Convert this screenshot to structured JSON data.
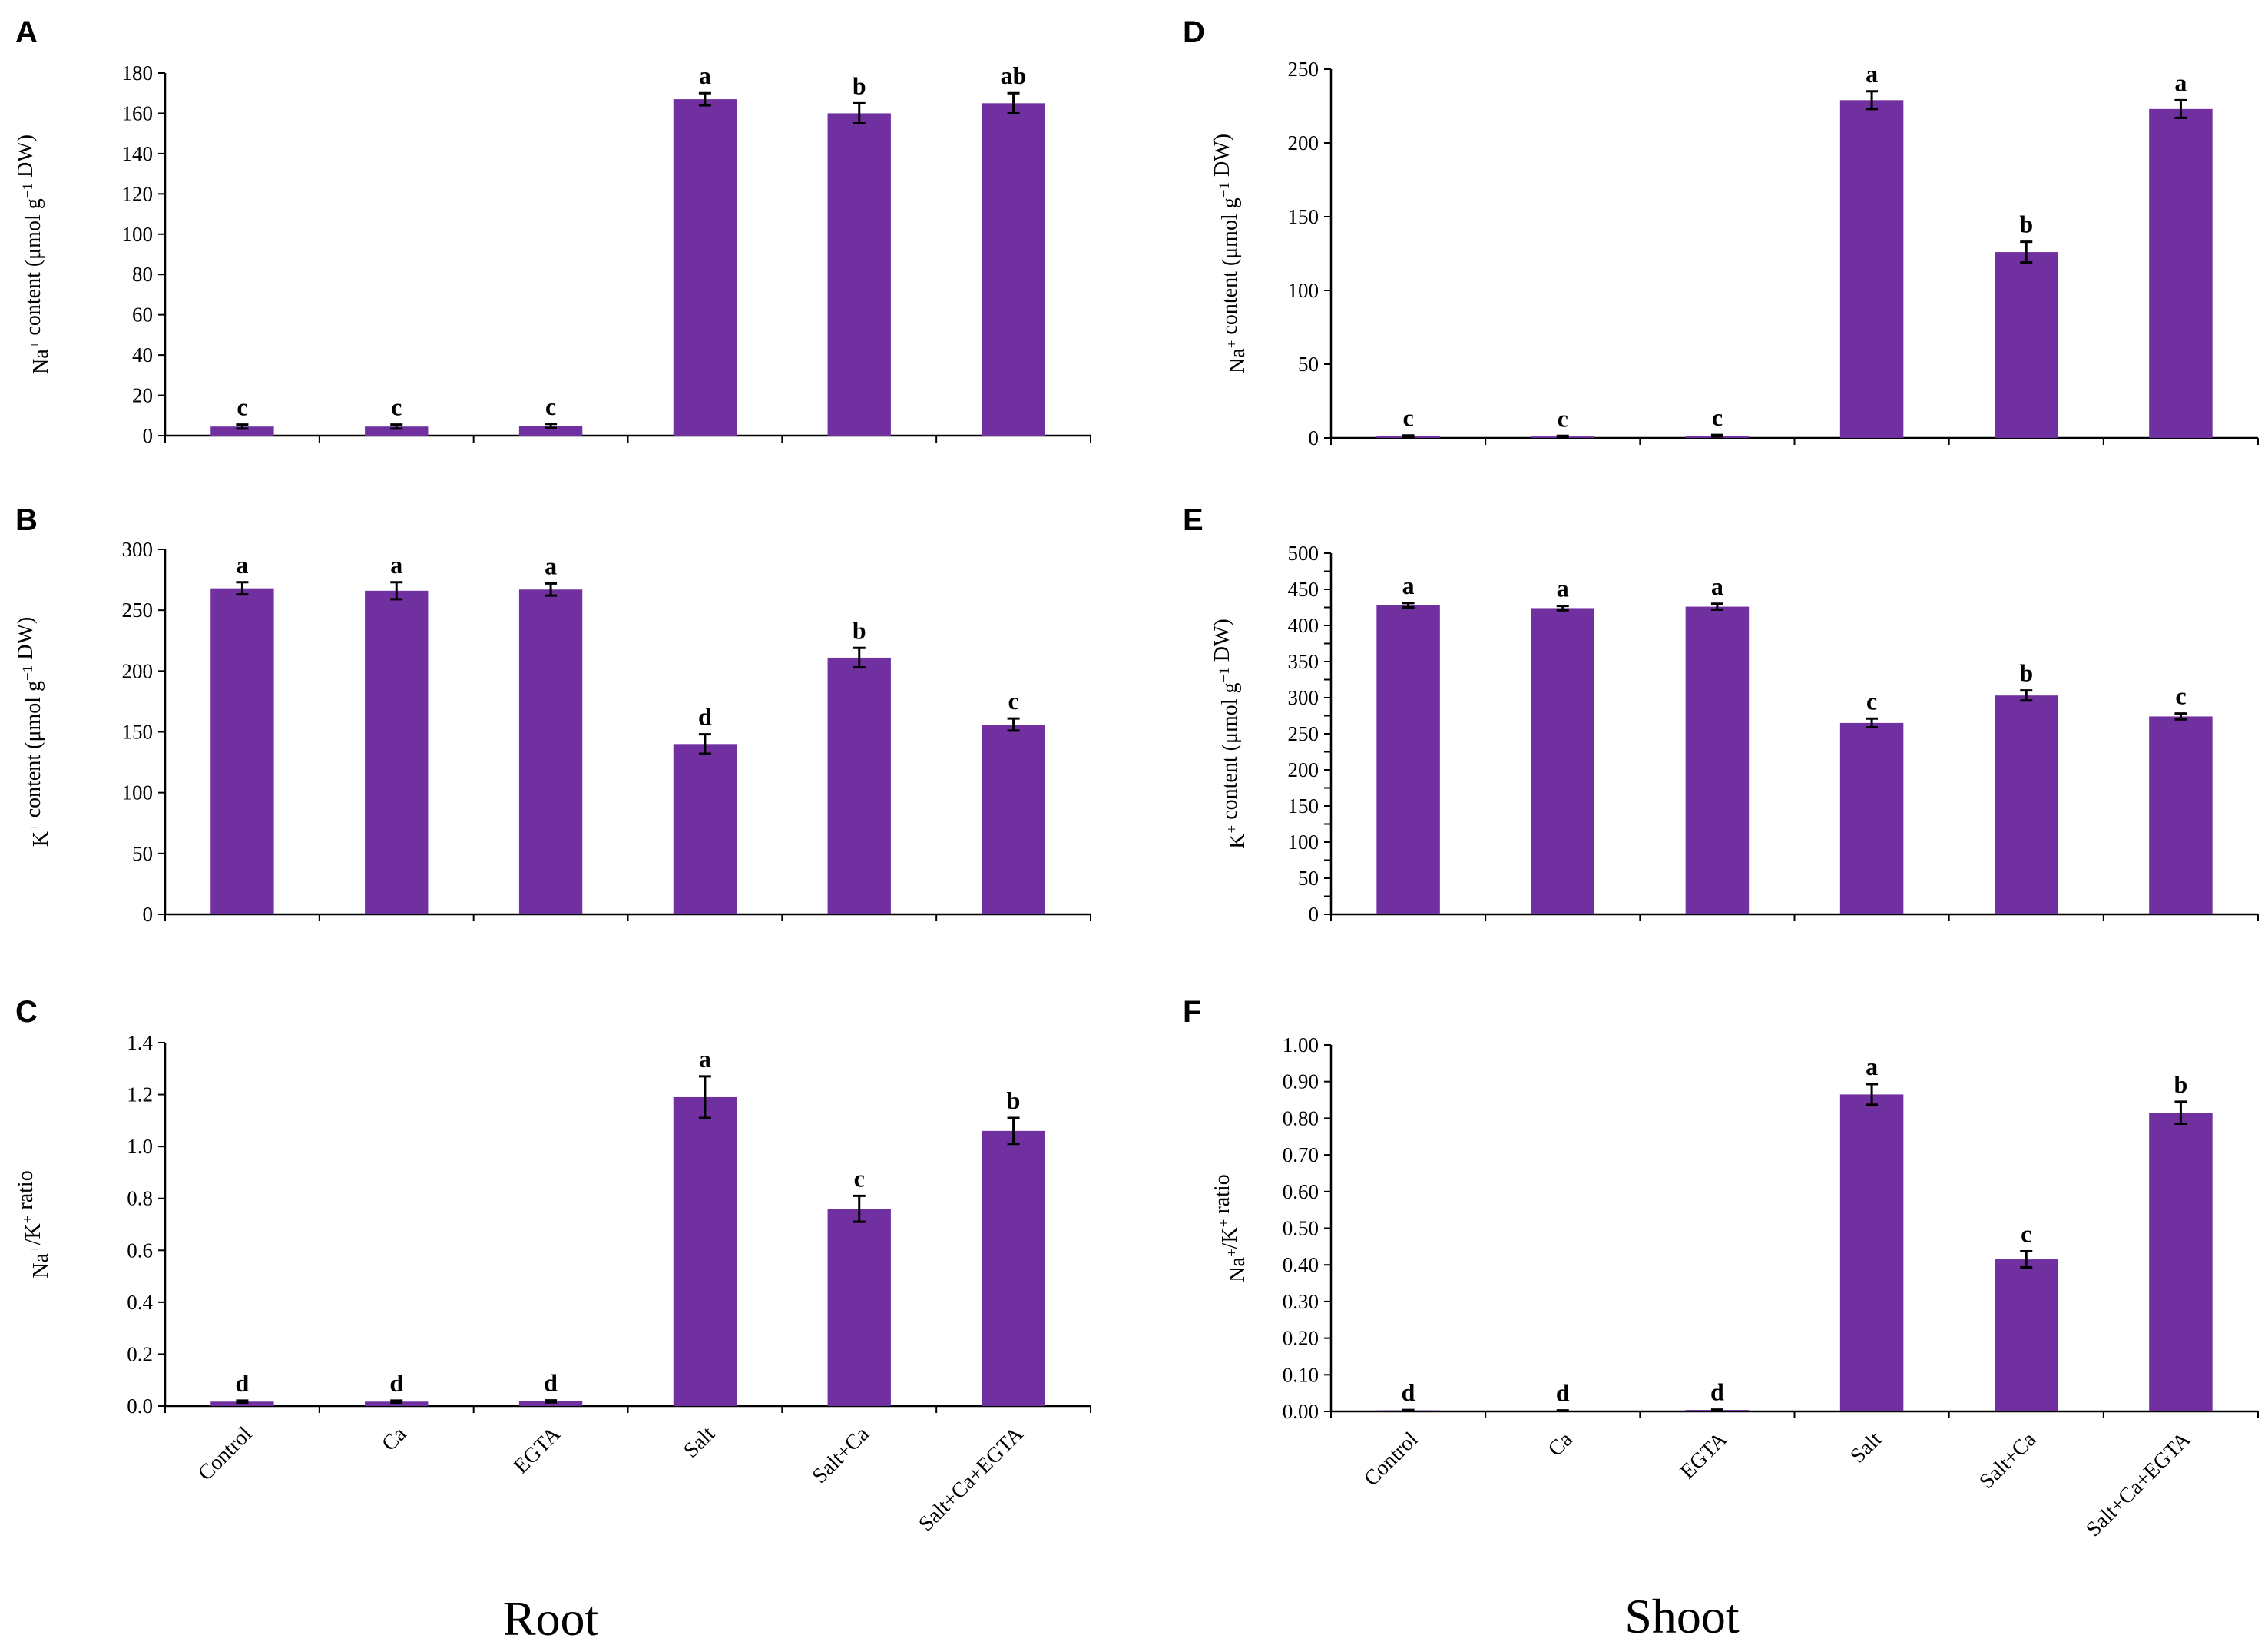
{
  "column_titles": {
    "root": "Root",
    "shoot": "Shoot"
  },
  "colors": {
    "bar": "#7030a0",
    "axis": "#000000"
  },
  "chart_data": [
    {
      "panel": "A",
      "type": "bar",
      "column": "root",
      "ylabel": "Na⁺ content (μmol g⁻¹ DW)",
      "ylabel_parts": [
        [
          "Na",
          ""
        ],
        [
          "+",
          "sup"
        ],
        [
          " content  (μmol g",
          ""
        ],
        [
          "−1",
          "sup"
        ],
        [
          " DW)",
          ""
        ]
      ],
      "categories": [
        "Control",
        "Ca",
        "EGTA",
        "Salt",
        "Salt+Ca",
        "Salt+Ca+EGTA"
      ],
      "values": [
        4.5,
        4.5,
        4.8,
        167,
        160,
        165
      ],
      "errors": [
        1,
        1,
        1,
        3,
        5,
        5
      ],
      "significance": [
        "c",
        "c",
        "c",
        "a",
        "b",
        "ab"
      ],
      "ylim": [
        0,
        180
      ],
      "yticks": [
        0,
        20,
        40,
        60,
        80,
        100,
        120,
        140,
        160,
        180
      ],
      "decimals": 0
    },
    {
      "panel": "B",
      "type": "bar",
      "column": "root",
      "ylabel": "K⁺ content (μmol g⁻¹ DW)",
      "ylabel_parts": [
        [
          "K",
          ""
        ],
        [
          "+",
          "sup"
        ],
        [
          " content  (μmol g",
          ""
        ],
        [
          "−1",
          "sup"
        ],
        [
          " DW)",
          ""
        ]
      ],
      "categories": [
        "Control",
        "Ca",
        "EGTA",
        "Salt",
        "Salt+Ca",
        "Salt+Ca+EGTA"
      ],
      "values": [
        268,
        266,
        267,
        140,
        211,
        156
      ],
      "errors": [
        5,
        7,
        5,
        8,
        8,
        5
      ],
      "significance": [
        "a",
        "a",
        "a",
        "d",
        "b",
        "c"
      ],
      "ylim": [
        0,
        300
      ],
      "yticks": [
        0,
        50,
        100,
        150,
        200,
        250,
        300
      ],
      "decimals": 0
    },
    {
      "panel": "C",
      "type": "bar",
      "column": "root",
      "ylabel": "Na⁺/K⁺ ratio",
      "ylabel_parts": [
        [
          "Na",
          ""
        ],
        [
          "+",
          "sup"
        ],
        [
          "/K",
          ""
        ],
        [
          "+",
          "sup"
        ],
        [
          " ratio",
          ""
        ]
      ],
      "categories": [
        "Control",
        "Ca",
        "EGTA",
        "Salt",
        "Salt+Ca",
        "Salt+Ca+EGTA"
      ],
      "values": [
        0.017,
        0.017,
        0.018,
        1.19,
        0.76,
        1.06
      ],
      "errors": [
        0.004,
        0.004,
        0.004,
        0.08,
        0.05,
        0.05
      ],
      "significance": [
        "d",
        "d",
        "d",
        "a",
        "c",
        "b"
      ],
      "ylim": [
        0,
        1.4
      ],
      "yticks": [
        0,
        0.2,
        0.4,
        0.6,
        0.8,
        1.0,
        1.2,
        1.4
      ],
      "decimals": 1
    },
    {
      "panel": "D",
      "type": "bar",
      "column": "shoot",
      "ylabel": "Na⁺ content (μmol g⁻¹ DW)",
      "ylabel_parts": [
        [
          "Na",
          ""
        ],
        [
          "+",
          "sup"
        ],
        [
          " content  (μmol g",
          ""
        ],
        [
          "−1",
          "sup"
        ],
        [
          " DW)",
          ""
        ]
      ],
      "categories": [
        "Control",
        "Ca",
        "EGTA",
        "Salt",
        "Salt+Ca",
        "Salt+Ca+EGTA"
      ],
      "values": [
        1.2,
        1,
        1.5,
        229,
        126,
        223
      ],
      "errors": [
        0.5,
        0.4,
        0.5,
        6,
        7,
        6
      ],
      "significance": [
        "c",
        "c",
        "c",
        "a",
        "b",
        "a"
      ],
      "ylim": [
        0,
        250
      ],
      "yticks": [
        0,
        50,
        100,
        150,
        200,
        250
      ],
      "decimals": 0
    },
    {
      "panel": "E",
      "type": "bar",
      "column": "shoot",
      "ylabel": "K⁺ content (μmol g⁻¹ DW)",
      "ylabel_parts": [
        [
          "K",
          ""
        ],
        [
          "+",
          "sup"
        ],
        [
          " content  (μmol g",
          ""
        ],
        [
          "−1",
          "sup"
        ],
        [
          " DW)",
          ""
        ]
      ],
      "categories": [
        "Control",
        "Ca",
        "EGTA",
        "Salt",
        "Salt+Ca",
        "Salt+Ca+EGTA"
      ],
      "values": [
        428,
        424,
        426,
        265,
        303,
        274
      ],
      "errors": [
        3,
        3,
        4,
        6,
        7,
        4
      ],
      "significance": [
        "a",
        "a",
        "a",
        "c",
        "b",
        "c"
      ],
      "ylim": [
        0,
        500
      ],
      "yticks": [
        0,
        25,
        50,
        75,
        100,
        125,
        150,
        175,
        200,
        225,
        250,
        275,
        300,
        325,
        350,
        375,
        400,
        425,
        450,
        475,
        500
      ],
      "ylabels_every": [
        0,
        50,
        100,
        150,
        200,
        250,
        300,
        350,
        400,
        450,
        500
      ],
      "decimals": 0
    },
    {
      "panel": "F",
      "type": "bar",
      "column": "shoot",
      "ylabel": "Na⁺/K⁺ ratio",
      "ylabel_parts": [
        [
          "Na",
          ""
        ],
        [
          "+",
          "sup"
        ],
        [
          "/K",
          ""
        ],
        [
          "+",
          "sup"
        ],
        [
          " ratio",
          ""
        ]
      ],
      "categories": [
        "Control",
        "Ca",
        "EGTA",
        "Salt",
        "Salt+Ca",
        "Salt+Ca+EGTA"
      ],
      "values": [
        0.003,
        0.002,
        0.004,
        0.865,
        0.415,
        0.815
      ],
      "errors": [
        0.001,
        0.001,
        0.001,
        0.028,
        0.022,
        0.03
      ],
      "significance": [
        "d",
        "d",
        "d",
        "a",
        "c",
        "b"
      ],
      "ylim": [
        0,
        1.0
      ],
      "yticks": [
        0,
        0.1,
        0.2,
        0.3,
        0.4,
        0.5,
        0.6,
        0.7,
        0.8,
        0.9,
        1.0
      ],
      "decimals": 2
    }
  ]
}
